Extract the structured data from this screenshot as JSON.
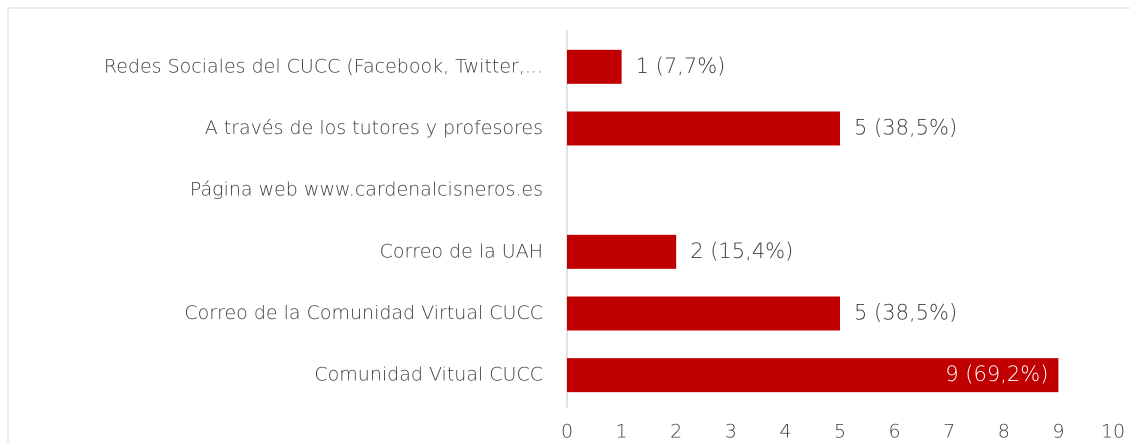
{
  "chart_data": {
    "type": "bar",
    "orientation": "horizontal",
    "categories": [
      "Redes Sociales del CUCC (Facebook, Twitter,...",
      "A través de los tutores y profesores",
      "Página web www.cardenalcisneros.es",
      "Correo de la UAH",
      "Correo de la Comunidad Virtual CUCC",
      "Comunidad Vitual CUCC"
    ],
    "values": [
      1,
      5,
      0,
      2,
      5,
      9
    ],
    "value_labels": [
      "1 (7,7%)",
      "5 (38,5%)",
      null,
      "2 (15,4%)",
      "5 (38,5%)",
      "9 (69,2%)"
    ],
    "color": "#c00000",
    "xlim": [
      0,
      10
    ],
    "xticks": [
      0,
      1,
      2,
      3,
      4,
      5,
      6,
      7,
      8,
      9,
      10
    ],
    "grid": false
  }
}
